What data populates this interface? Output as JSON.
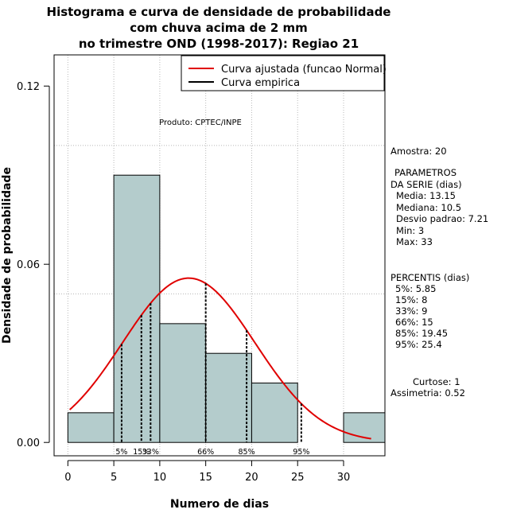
{
  "chart_data": {
    "type": "histogram",
    "title_lines": [
      "Histograma e curva de densidade de probabilidade",
      "com chuva acima de 2 mm",
      "no trimestre OND (1998-2017): Regiao 21"
    ],
    "xlabel": "Numero de dias",
    "ylabel": "Densidade de probabilidade",
    "xlim": [
      -1.5,
      34.5
    ],
    "ylim": [
      -0.0045,
      0.1305
    ],
    "x_ticks": [
      0,
      5,
      10,
      15,
      20,
      25,
      30
    ],
    "y_ticks": [
      {
        "value": 0.0,
        "label": "0.00"
      },
      {
        "value": 0.06,
        "label": "0.06"
      },
      {
        "value": 0.12,
        "label": "0.12"
      }
    ],
    "grid_x": [
      0,
      5,
      10,
      15,
      20,
      25,
      30
    ],
    "grid_y": [
      0.05,
      0.1
    ],
    "bars": [
      {
        "start": 0,
        "end": 5,
        "density": 0.01
      },
      {
        "start": 5,
        "end": 10,
        "density": 0.09
      },
      {
        "start": 10,
        "end": 15,
        "density": 0.04
      },
      {
        "start": 15,
        "end": 20,
        "density": 0.03
      },
      {
        "start": 20,
        "end": 25,
        "density": 0.02
      },
      {
        "start": 25,
        "end": 30,
        "density": 0.0
      },
      {
        "start": 30,
        "end": 35,
        "density": 0.01
      }
    ],
    "normal_fit": {
      "mean": 13.15,
      "sd": 7.21,
      "x_from": 0.2,
      "x_to": 33,
      "color": "#e00000"
    },
    "percentile_lines": [
      {
        "label": "5%",
        "x": 5.85
      },
      {
        "label": "15%",
        "x": 8
      },
      {
        "label": "33%",
        "x": 9
      },
      {
        "label": "66%",
        "x": 15
      },
      {
        "label": "85%",
        "x": 19.45
      },
      {
        "label": "95%",
        "x": 25.4
      }
    ],
    "legend": {
      "position": "top-right",
      "entries": [
        {
          "label": "Curva ajustada (funcao Normal)",
          "color": "#e00000"
        },
        {
          "label": "Curva empirica",
          "color": "#000000"
        }
      ]
    },
    "bar_color": "#b4cccc",
    "credit": "Produto: CPTEC/INPE"
  },
  "side_panel": {
    "sample": "Amostra: 20",
    "params_title": "PARAMETROS",
    "params_sub": "DA SERIE (dias)",
    "params": [
      "Media: 13.15",
      "Mediana: 10.5",
      "Desvio padrao: 7.21",
      "Min: 3",
      "Max: 33"
    ],
    "percentis_title": "PERCENTIS (dias)",
    "percentis": [
      "5%: 5.85",
      "15%: 8",
      "33%: 9",
      "66%: 15",
      "85%: 19.45",
      "95%: 25.4"
    ],
    "curtose": "Curtose: 1",
    "assimetria": "Assimetria: 0.52"
  }
}
